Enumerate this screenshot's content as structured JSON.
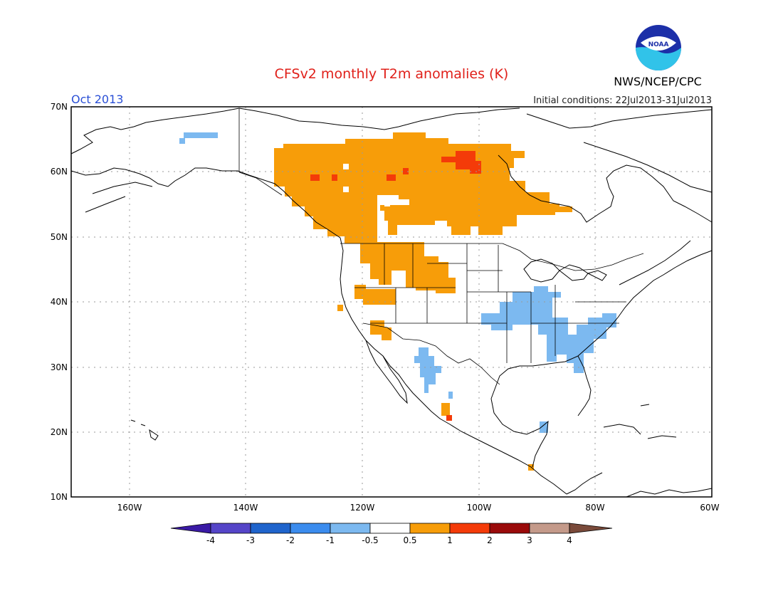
{
  "title": "CFSv2 monthly T2m anomalies (K)",
  "month": "Oct 2013",
  "initial_conditions": "Initial conditions: 22Jul2013-31Jul2013",
  "agency": "NWS/NCEP/CPC",
  "logo_text": "NOAA",
  "colors": {
    "title": "#e0201a",
    "month": "#2a4fd6",
    "frame": "#000000",
    "grid": "#9a9a9a",
    "coast": "#000000"
  },
  "map": {
    "lat_ticks": [
      "70N",
      "60N",
      "50N",
      "40N",
      "30N",
      "20N",
      "10N"
    ],
    "lon_ticks": [
      "160W",
      "140W",
      "120W",
      "100W",
      "80W",
      "60W"
    ],
    "lat_range": [
      10,
      70
    ],
    "lon_range": [
      -170,
      -60
    ]
  },
  "colorbar": {
    "labels": [
      "-4",
      "-3",
      "-2",
      "-1",
      "-0.5",
      "0.5",
      "1",
      "2",
      "3",
      "4"
    ],
    "colors": [
      "#3a1aa5",
      "#5545c8",
      "#1f64cc",
      "#3b8cee",
      "#7cb9f0",
      "#ffffff",
      "#f79d09",
      "#f43b09",
      "#9a0a0a",
      "#c49a8a",
      "#7a4a3a"
    ]
  },
  "anomaly_regions": [
    {
      "name": "Canada / NW US warm",
      "level": 1,
      "color": "#f79d09"
    },
    {
      "name": "Canada hot spots",
      "level": 2,
      "color": "#f43b09"
    },
    {
      "name": "SW US warm",
      "level": 1,
      "color": "#f79d09"
    },
    {
      "name": "Mexico warm",
      "level": 1,
      "color": "#f79d09"
    },
    {
      "name": "Central/SE US cool",
      "level": -1,
      "color": "#7cb9f0"
    },
    {
      "name": "Mexico cool",
      "level": -1,
      "color": "#7cb9f0"
    },
    {
      "name": "Alaska cool",
      "level": -1,
      "color": "#7cb9f0"
    }
  ]
}
